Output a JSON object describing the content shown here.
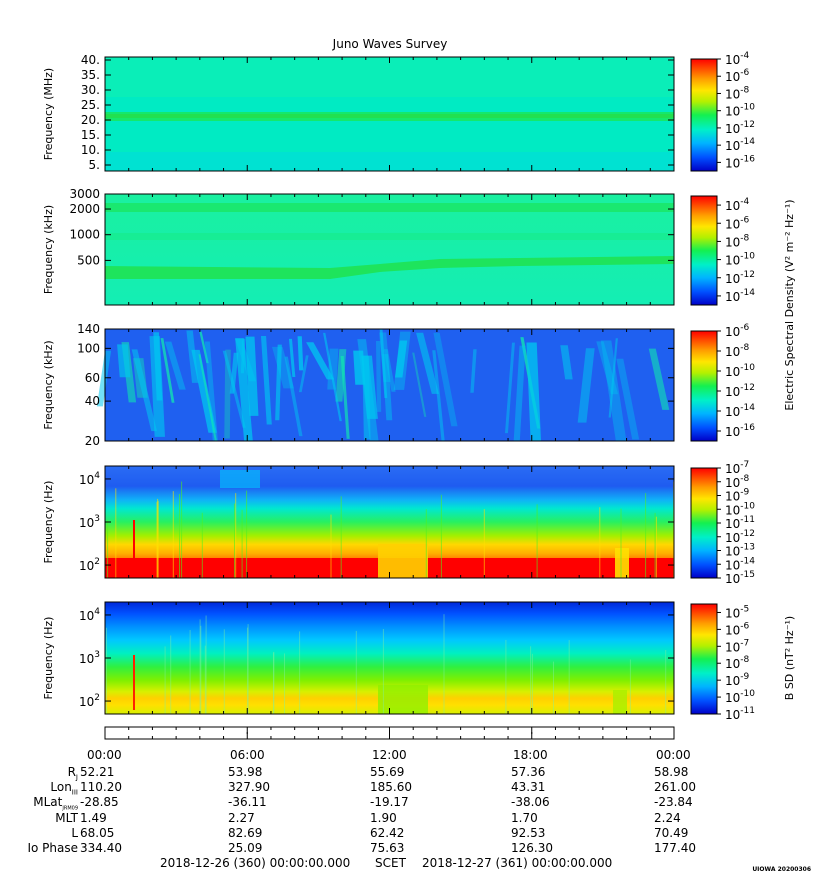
{
  "title": "Juno Waves Survey",
  "chart_data": [
    {
      "type": "heatmap",
      "ylabel": "Frequency (MHz)",
      "yticks": [
        "40.",
        "35.",
        "30.",
        "25.",
        "20.",
        "15.",
        "10.",
        "5."
      ],
      "ytick_values": [
        40,
        35,
        30,
        25,
        20,
        15,
        10,
        5
      ],
      "ylim": [
        3,
        41
      ],
      "yscale": "linear",
      "colorbar_ticks": [
        "-4",
        "-6",
        "-8",
        "-10",
        "-12",
        "-14",
        "-16"
      ],
      "colorbar_range": [
        -17,
        -4
      ],
      "colorbar_label": ""
    },
    {
      "type": "heatmap",
      "ylabel": "Frequency (kHz)",
      "yticks": [
        "3000",
        "2000",
        "1000",
        "500"
      ],
      "ytick_values": [
        3000,
        2000,
        1000,
        500
      ],
      "ylim": [
        150,
        3000
      ],
      "yscale": "log",
      "colorbar_ticks": [
        "-4",
        "-6",
        "-8",
        "-10",
        "-12",
        "-14"
      ],
      "colorbar_range": [
        -15,
        -3
      ],
      "colorbar_label": "Electric Spectral Density (V² m⁻² Hz⁻¹)"
    },
    {
      "type": "heatmap",
      "ylabel": "Frequency (kHz)",
      "yticks": [
        "140",
        "100",
        "60",
        "40",
        "20"
      ],
      "ytick_values": [
        140,
        100,
        60,
        40,
        20
      ],
      "ylim": [
        20,
        140
      ],
      "yscale": "log",
      "colorbar_ticks": [
        "-6",
        "-8",
        "-10",
        "-12",
        "-14",
        "-16"
      ],
      "colorbar_range": [
        -17,
        -6
      ],
      "colorbar_label": ""
    },
    {
      "type": "heatmap",
      "ylabel": "Frequency (Hz)",
      "yticks": [
        "4",
        "3",
        "2"
      ],
      "ytick_values": [
        10000,
        1000,
        100
      ],
      "ylim": [
        50,
        20000
      ],
      "yscale": "log",
      "colorbar_ticks": [
        "-7",
        "-8",
        "-9",
        "-10",
        "-11",
        "-12",
        "-13",
        "-14",
        "-15"
      ],
      "colorbar_range": [
        -15,
        -7
      ],
      "colorbar_label": ""
    },
    {
      "type": "heatmap",
      "ylabel": "Frequency (Hz)",
      "yticks": [
        "4",
        "3",
        "2"
      ],
      "ytick_values": [
        10000,
        1000,
        100
      ],
      "ylim": [
        50,
        20000
      ],
      "yscale": "log",
      "colorbar_ticks": [
        "-5",
        "-6",
        "-7",
        "-8",
        "-9",
        "-10",
        "-11"
      ],
      "colorbar_range": [
        -11,
        -4.5
      ],
      "colorbar_label": "B SD (nT² Hz⁻¹)"
    }
  ],
  "ephemeris": {
    "times": [
      "00:00",
      "06:00",
      "12:00",
      "18:00",
      "00:00"
    ],
    "rows": [
      {
        "label": "R",
        "sub": "J",
        "values": [
          "52.21",
          "53.98",
          "55.69",
          "57.36",
          "58.98"
        ]
      },
      {
        "label": "Lon",
        "sub": "III",
        "values": [
          "110.20",
          "327.90",
          "185.60",
          "43.31",
          "261.00"
        ]
      },
      {
        "label": "MLat",
        "sub": "JRM09",
        "values": [
          "-28.85",
          "-36.11",
          "-19.17",
          "-38.06",
          "-23.84"
        ]
      },
      {
        "label": "MLT",
        "sub": "",
        "values": [
          "1.49",
          "2.27",
          "1.90",
          "1.70",
          "2.24"
        ]
      },
      {
        "label": "L",
        "sub": "",
        "values": [
          "68.05",
          "82.69",
          "62.42",
          "92.53",
          "70.49"
        ]
      },
      {
        "label": "Io Phase",
        "sub": "",
        "values": [
          "334.40",
          "25.09",
          "75.63",
          "126.30",
          "177.40"
        ]
      }
    ]
  },
  "footer": {
    "start": "2018-12-26 (360) 00:00:00.000",
    "mid": "SCET",
    "end": "2018-12-27 (361) 00:00:00.000"
  },
  "stamp": "UIOWA 20200306",
  "colors": {
    "cmap": [
      "#0000c8",
      "#0050ff",
      "#00b4ff",
      "#00f0c8",
      "#14f050",
      "#b4f000",
      "#ffe600",
      "#ffa000",
      "#ff5000",
      "#ff0000"
    ],
    "background_panel1": "#00ebc3",
    "background_panel2": "#14f0a0"
  }
}
